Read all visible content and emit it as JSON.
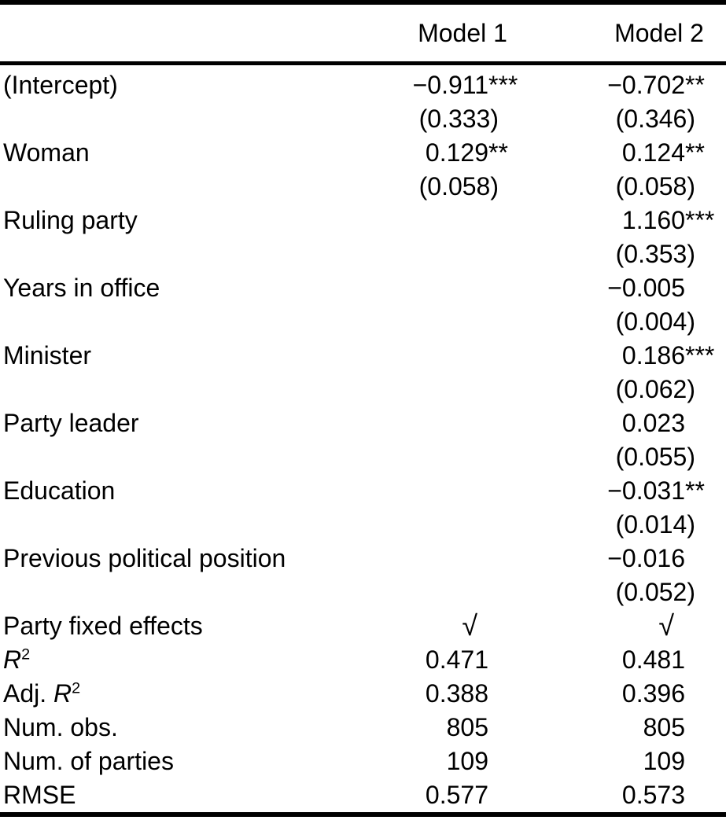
{
  "table": {
    "columns": [
      "Model 1",
      "Model 2"
    ],
    "coef_rows": [
      {
        "label": "(Intercept)",
        "m1": {
          "value": "−0.911",
          "stars": "***",
          "se": "(0.333)"
        },
        "m2": {
          "value": "−0.702",
          "stars": "**",
          "se": "(0.346)"
        }
      },
      {
        "label": "Woman",
        "m1": {
          "value": "0.129",
          "stars": "**",
          "se": "(0.058)"
        },
        "m2": {
          "value": "0.124",
          "stars": "**",
          "se": "(0.058)"
        }
      },
      {
        "label": "Ruling party",
        "m1": {
          "value": "",
          "stars": "",
          "se": ""
        },
        "m2": {
          "value": "1.160",
          "stars": "***",
          "se": "(0.353)"
        }
      },
      {
        "label": "Years in office",
        "m1": {
          "value": "",
          "stars": "",
          "se": ""
        },
        "m2": {
          "value": "−0.005",
          "stars": "",
          "se": "(0.004)"
        }
      },
      {
        "label": "Minister",
        "m1": {
          "value": "",
          "stars": "",
          "se": ""
        },
        "m2": {
          "value": "0.186",
          "stars": "***",
          "se": "(0.062)"
        }
      },
      {
        "label": "Party leader",
        "m1": {
          "value": "",
          "stars": "",
          "se": ""
        },
        "m2": {
          "value": "0.023",
          "stars": "",
          "se": "(0.055)"
        }
      },
      {
        "label": "Education",
        "m1": {
          "value": "",
          "stars": "",
          "se": ""
        },
        "m2": {
          "value": "−0.031",
          "stars": "**",
          "se": "(0.014)"
        }
      },
      {
        "label": "Previous political position",
        "m1": {
          "value": "",
          "stars": "",
          "se": ""
        },
        "m2": {
          "value": "−0.016",
          "stars": "",
          "se": "(0.052)"
        }
      }
    ],
    "check_row": {
      "label": "Party fixed effects",
      "m1": "√",
      "m2": "√"
    },
    "stat_rows": [
      {
        "label_prefix": "",
        "label_symbol": "R",
        "label_sup": "2",
        "m1": "0.471",
        "m2": "0.481"
      },
      {
        "label_prefix": "Adj. ",
        "label_symbol": "R",
        "label_sup": "2",
        "m1": "0.388",
        "m2": "0.396"
      },
      {
        "label_prefix": "Num. obs.",
        "label_symbol": "",
        "label_sup": "",
        "m1": "805",
        "m2": "805"
      },
      {
        "label_prefix": "Num. of parties",
        "label_symbol": "",
        "label_sup": "",
        "m1": "109",
        "m2": "109"
      },
      {
        "label_prefix": "RMSE",
        "label_symbol": "",
        "label_sup": "",
        "m1": "0.577",
        "m2": "0.573"
      }
    ]
  },
  "colors": {
    "text": "#000000",
    "background": "#ffffff",
    "rule": "#000000"
  }
}
